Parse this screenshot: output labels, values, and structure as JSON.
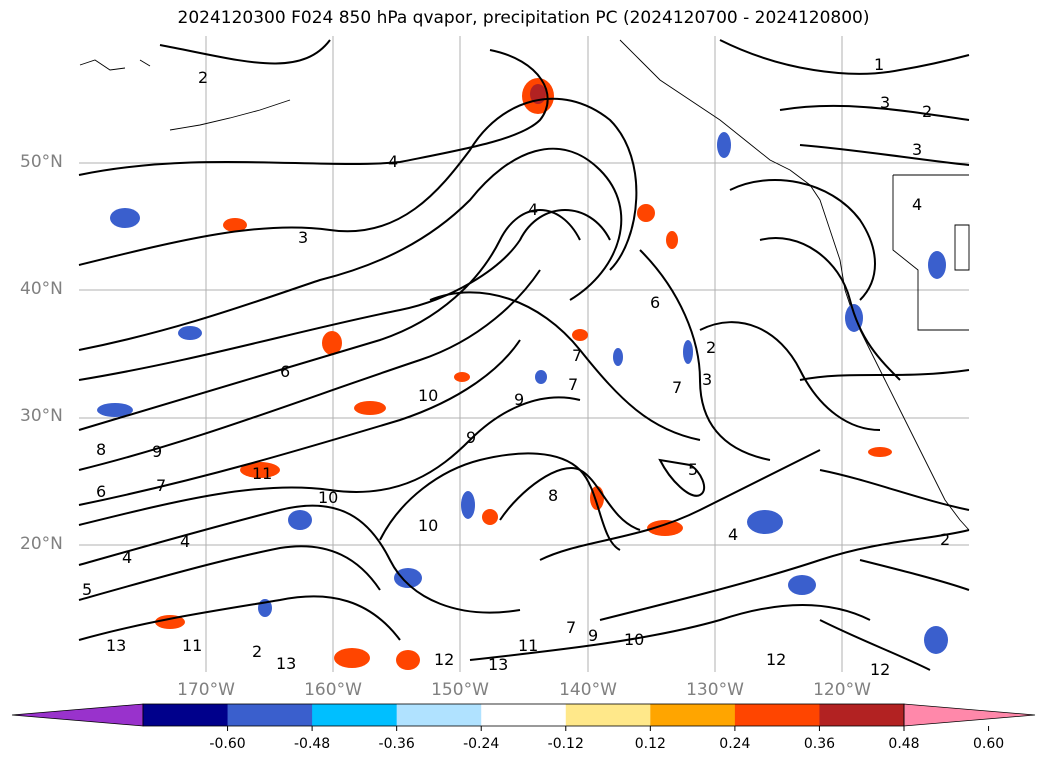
{
  "title": "2024120300 F024 850 hPa qvapor, precipitation PC (2024120700 - 2024120800)",
  "lat_labels": [
    "50°N",
    "40°N",
    "30°N",
    "20°N"
  ],
  "lon_labels": [
    "170°W",
    "160°W",
    "150°W",
    "140°W",
    "130°W",
    "120°W"
  ],
  "colorbar": {
    "ticks": [
      "-0.60",
      "-0.48",
      "-0.36",
      "-0.24",
      "-0.12",
      "0.12",
      "0.24",
      "0.36",
      "0.48",
      "0.60"
    ],
    "colors": [
      "#9932CC",
      "#00008B",
      "#3A5FCD",
      "#00BFFF",
      "#B0E2FF",
      "#FFFFFF",
      "#FFE88A",
      "#FFA500",
      "#FF4500",
      "#B22222",
      "#FF88AA"
    ],
    "extend": "both"
  },
  "contour_labels": {
    "north": [
      "2",
      "4",
      "3",
      "4",
      "1",
      "3",
      "2",
      "3",
      "4"
    ],
    "central": [
      "6",
      "10",
      "9",
      "9",
      "8",
      "7",
      "7",
      "7",
      "6",
      "5",
      "4",
      "3",
      "2"
    ],
    "south": [
      "11",
      "10",
      "10",
      "9",
      "8",
      "7",
      "6",
      "5",
      "4",
      "4",
      "2",
      "12",
      "13",
      "13",
      "12",
      "11",
      "11",
      "10",
      "9",
      "7",
      "13",
      "12",
      "2"
    ]
  },
  "style": {
    "grid_color": "#b0b0b0",
    "contour_color": "#000000",
    "label_color": "#808080"
  }
}
